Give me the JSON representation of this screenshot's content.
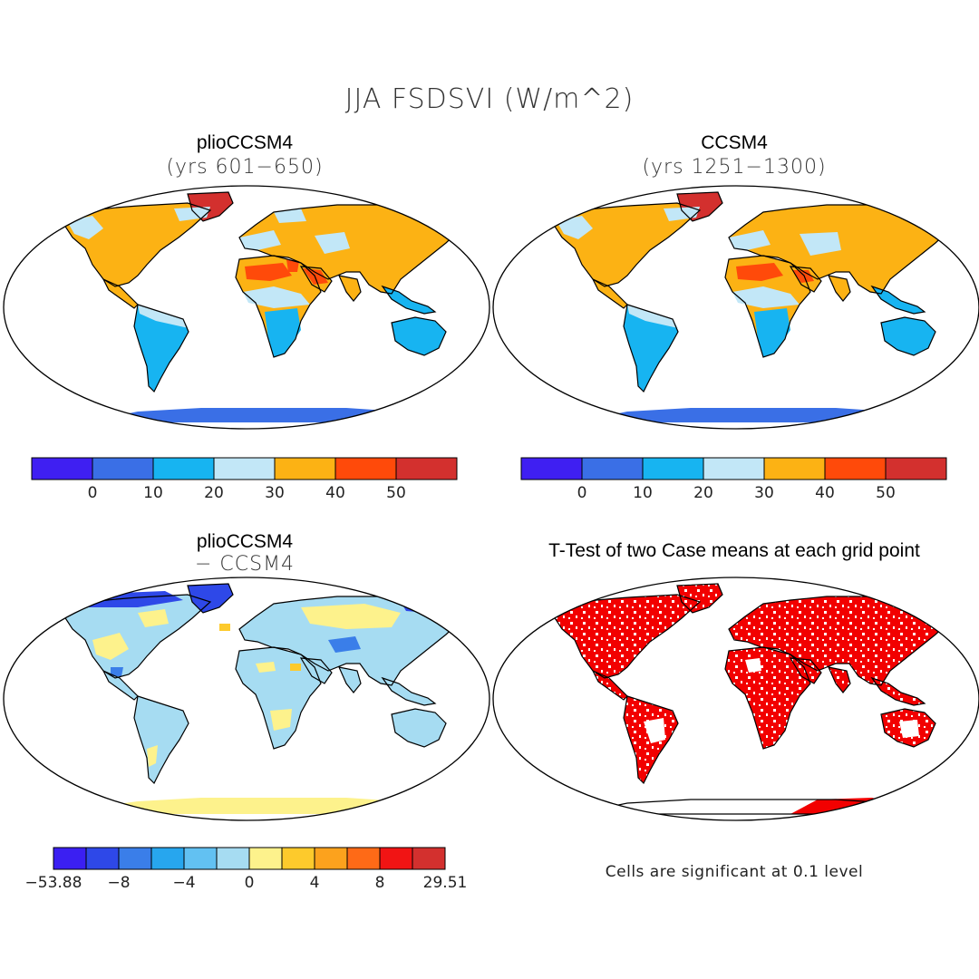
{
  "figure": {
    "title": "JJA FSDSVI (W/m^2)"
  },
  "panels": [
    {
      "id": "plio",
      "title": "plioCCSM4",
      "subtitle": "(yrs 601−650)"
    },
    {
      "id": "ccsm",
      "title": "CCSM4",
      "subtitle": "(yrs 1251−1300)"
    },
    {
      "id": "diff",
      "title": "plioCCSM4",
      "subtitle": "− CCSM4"
    },
    {
      "id": "ttest",
      "title": "T-Test of two Case means at each grid point",
      "note": "Cells are significant at 0.1 level"
    }
  ],
  "colorbars": {
    "abs": {
      "colors": [
        "#3f1ff2",
        "#3a6fe6",
        "#17b4f1",
        "#c2e7f7",
        "#fcb214",
        "#ff4a0a",
        "#d3302e"
      ],
      "ticks": [
        "0",
        "10",
        "20",
        "30",
        "40",
        "50"
      ]
    },
    "diff": {
      "colors": [
        "#3b1ff2",
        "#2e48e8",
        "#3a7ee9",
        "#27a6ee",
        "#62c1f2",
        "#a6dcf2",
        "#fdf28c",
        "#fdca2c",
        "#fca21d",
        "#fe6a17",
        "#f11414",
        "#d3302e"
      ],
      "ticks": [
        "−53.88",
        "−8",
        "−4",
        "0",
        "4",
        "8",
        "29.51"
      ]
    }
  },
  "colors": {
    "significance": "#f20000",
    "map_outline": "#000000"
  }
}
